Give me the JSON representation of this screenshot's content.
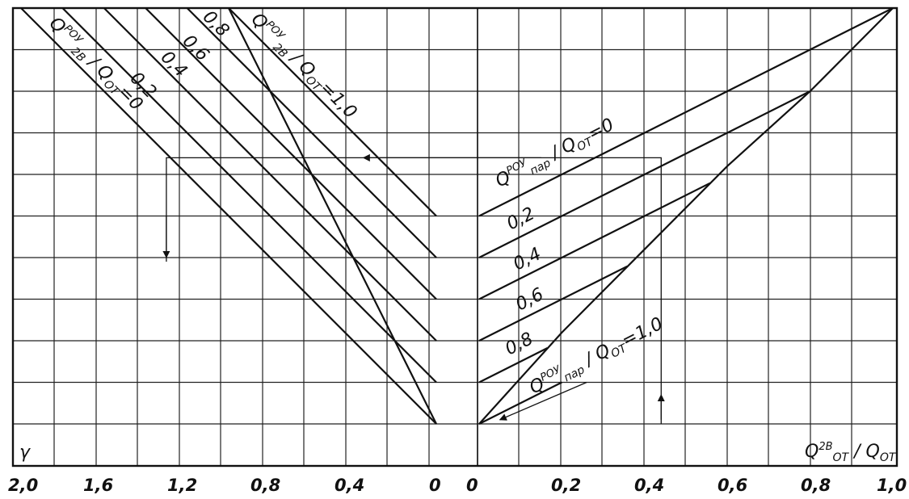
{
  "chart_data": {
    "type": "line",
    "title": "",
    "corner_label": "γ",
    "grid": true,
    "left_panel": {
      "x_ticks": [
        "2,0",
        "1,6",
        "1,2",
        "0,8",
        "0,4",
        "0"
      ],
      "x_range": [
        2.0,
        0
      ],
      "series_title": {
        "q": "Q",
        "sup": "РОУ",
        "sub": "2В",
        "den": "Q",
        "den_sub": "ОТ"
      },
      "series": [
        {
          "label": "0",
          "tag": "=0",
          "start": 2.0
        },
        {
          "label": "0,2",
          "start": 1.8
        },
        {
          "label": "0,4",
          "start": 1.6
        },
        {
          "label": "0,6",
          "start": 1.4
        },
        {
          "label": "0,8",
          "start": 1.2
        },
        {
          "label": "1,0",
          "tag": "=1,0",
          "start": 1.0
        }
      ]
    },
    "right_panel": {
      "x_ticks": [
        "0",
        "0,2",
        "0,4",
        "0,6",
        "0,8",
        "1,0"
      ],
      "x_range": [
        0,
        1.0
      ],
      "xlabel": {
        "q": "Q",
        "sup": "2В",
        "sub": "ОТ",
        "den": "Q",
        "den_sub": "ОТ"
      },
      "series_title": {
        "q": "Q",
        "sup": "РОУ",
        "sub": "пар",
        "den": "Q",
        "den_sub": "ОТ"
      },
      "series": [
        {
          "label": "0",
          "tag": "=0",
          "start_y": 5
        },
        {
          "label": "0,2",
          "start_y": 4
        },
        {
          "label": "0,4",
          "start_y": 3
        },
        {
          "label": "0,6",
          "start_y": 2
        },
        {
          "label": "0,8",
          "start_y": 1
        },
        {
          "label": "1,0",
          "tag": "=1,0",
          "start_y": 0
        }
      ],
      "envelope": [
        [
          0,
          0
        ],
        [
          0.2,
          2.2
        ],
        [
          0.4,
          4.2
        ],
        [
          0.6,
          6.2
        ],
        [
          0.8,
          8
        ],
        [
          1.0,
          10
        ]
      ]
    },
    "y_range": [
      0,
      10
    ]
  }
}
